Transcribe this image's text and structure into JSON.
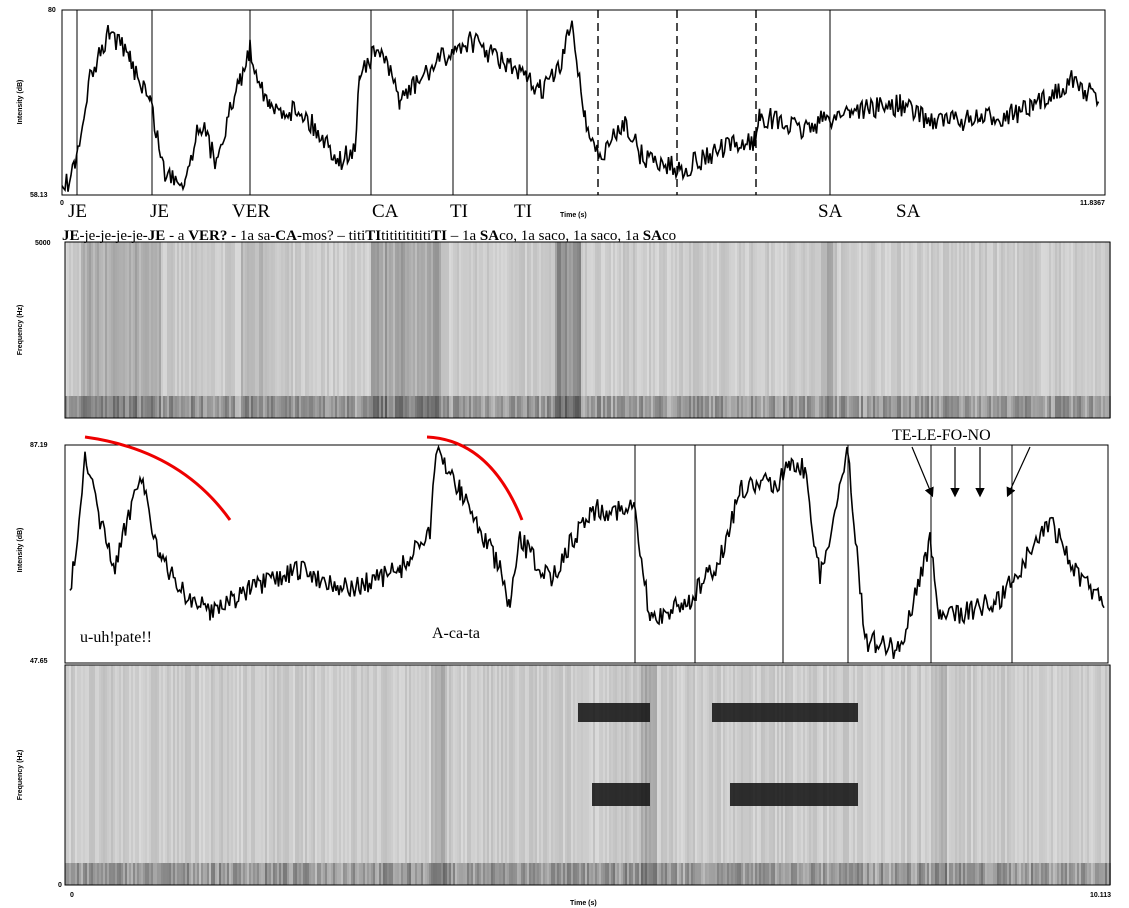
{
  "top_panel": {
    "y_axis_label": "Intensity (dB)",
    "y_top": "80",
    "y_bottom": "58.13",
    "x_start": "0",
    "x_end": "11.8367",
    "x_axis_label": "Time (s)",
    "syllables": [
      "JE",
      "JE",
      "VER",
      "CA",
      "TI",
      "TI",
      "SA",
      "SA"
    ],
    "transcript": [
      {
        "text": "JE",
        "bold": true
      },
      {
        "text": "-je-je-je-je-",
        "bold": false
      },
      {
        "text": "JE",
        "bold": true
      },
      {
        "text": " - a ",
        "bold": false
      },
      {
        "text": "VER?",
        "bold": true
      },
      {
        "text": " - 1a sa-",
        "bold": false
      },
      {
        "text": "CA",
        "bold": true
      },
      {
        "text": "-mos? – titi",
        "bold": false
      },
      {
        "text": "TI",
        "bold": true
      },
      {
        "text": "titititititi",
        "bold": false
      },
      {
        "text": "TI",
        "bold": true
      },
      {
        "text": " – 1a ",
        "bold": false
      },
      {
        "text": "SA",
        "bold": true
      },
      {
        "text": "co, 1a saco, 1a saco, 1a ",
        "bold": false
      },
      {
        "text": "SA",
        "bold": true
      },
      {
        "text": "co",
        "bold": false
      }
    ]
  },
  "top_spectrogram": {
    "y_axis_label": "Frequency (Hz)",
    "y_top": "5000"
  },
  "bottom_panel": {
    "y_axis_label": "Intensity (dB)",
    "y_top": "87.19",
    "y_bottom": "47.65",
    "annotations": [
      "u-uh!pate!!",
      "A-ca-ta",
      "TE-LE-FO-NO"
    ]
  },
  "bottom_spectrogram": {
    "y_axis_label": "Frequency (Hz)",
    "y_bottom": "0",
    "x_start": "0",
    "x_end": "10.113",
    "x_axis_label": "Time (s)"
  }
}
